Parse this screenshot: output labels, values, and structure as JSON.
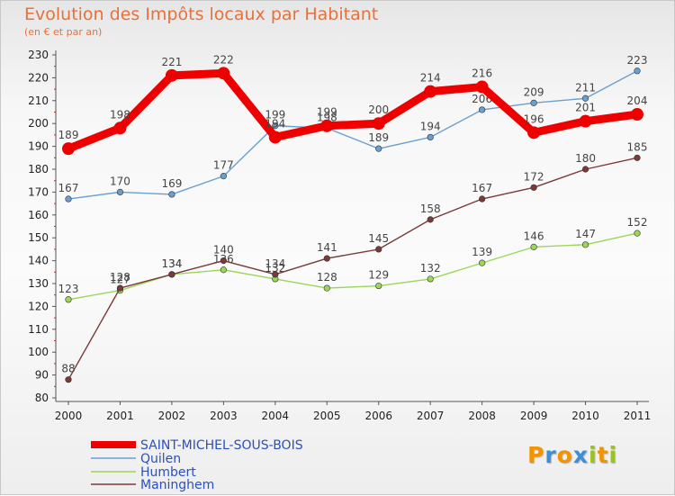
{
  "title": "Evolution des Impôts locaux par Habitant",
  "subtitle": "(en € et par an)",
  "logo": {
    "letters": [
      "P",
      "r",
      "o",
      "x",
      "i",
      "t",
      "i"
    ],
    "colors": [
      "#f29400",
      "#3a8fd8",
      "#f29400",
      "#3a8fd8",
      "#9bc31c",
      "#f29400",
      "#9bc31c"
    ]
  },
  "chart_data": {
    "type": "line",
    "x": [
      "2000",
      "2001",
      "2002",
      "2003",
      "2004",
      "2005",
      "2006",
      "2007",
      "2008",
      "2009",
      "2010",
      "2011"
    ],
    "ylim": [
      80,
      230
    ],
    "yticks": [
      80,
      90,
      100,
      110,
      120,
      130,
      140,
      150,
      160,
      170,
      180,
      190,
      200,
      210,
      220,
      230
    ],
    "grid": false,
    "legend_position": "bottom-left",
    "series": [
      {
        "name": "SAINT-MICHEL-SOUS-BOIS",
        "color": "#ee0000",
        "values": [
          189,
          198,
          221,
          222,
          194,
          199,
          200,
          214,
          216,
          196,
          201,
          204
        ]
      },
      {
        "name": "Quilen",
        "color": "#6b9fcf",
        "values": [
          167,
          170,
          169,
          177,
          199,
          198,
          189,
          194,
          206,
          209,
          211,
          223
        ]
      },
      {
        "name": "Humbert",
        "color": "#9bd65a",
        "values": [
          123,
          127,
          134,
          136,
          132,
          128,
          129,
          132,
          139,
          146,
          147,
          152
        ]
      },
      {
        "name": "Maninghem",
        "color": "#7a3a3a",
        "values": [
          88,
          128,
          134,
          140,
          134,
          141,
          145,
          158,
          167,
          172,
          180,
          185
        ]
      }
    ]
  }
}
